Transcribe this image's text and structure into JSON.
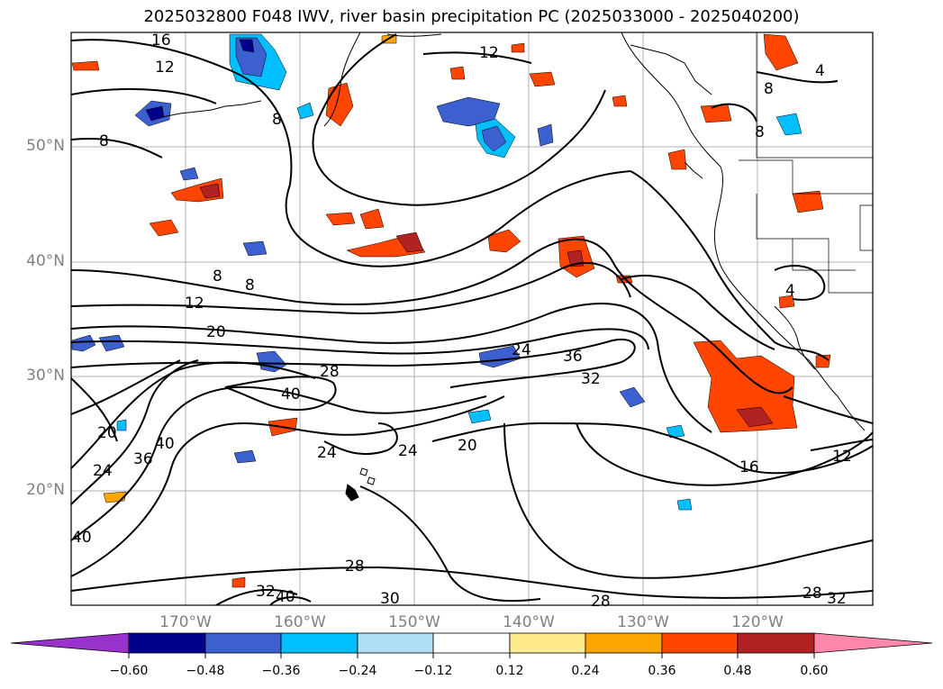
{
  "title": "2025032800 F048 IWV, river basin precipitation PC (2025033000 - 2025040200)",
  "map": {
    "lat_labels": [
      "50°N",
      "40°N",
      "30°N",
      "20°N"
    ],
    "lon_labels": [
      "170°W",
      "160°W",
      "150°W",
      "140°W",
      "130°W",
      "120°W"
    ],
    "contour_labels": [
      "16",
      "12",
      "8",
      "12",
      "8",
      "4",
      "8",
      "8",
      "8",
      "8",
      "12",
      "20",
      "28",
      "40",
      "36",
      "32",
      "24",
      "40",
      "36",
      "24",
      "24",
      "24",
      "20",
      "16",
      "12",
      "4",
      "28",
      "32",
      "40",
      "30",
      "28",
      "28",
      "32",
      "20",
      "40"
    ]
  },
  "colorbar": {
    "colors": [
      "#9932cc",
      "#00008b",
      "#3d60d0",
      "#00bfff",
      "#b0e0f5",
      "#ffffff",
      "#ffeb8c",
      "#ffa500",
      "#ff4500",
      "#b22222",
      "#ff88aa"
    ],
    "tick_labels": [
      "−0.60",
      "−0.48",
      "−0.36",
      "−0.24",
      "−0.12",
      "0.12",
      "0.24",
      "0.36",
      "0.48",
      "0.60"
    ]
  }
}
